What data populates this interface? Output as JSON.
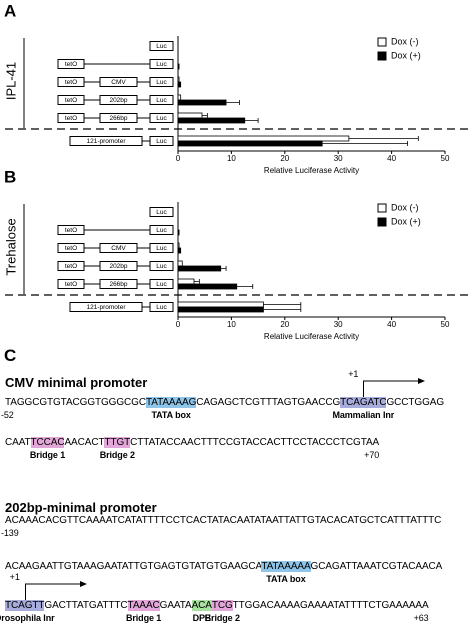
{
  "chart_data": [
    {
      "type": "bar",
      "panel": "A",
      "side_label": "IPL-41",
      "constructs": [
        [
          "Luc"
        ],
        [
          "tetO",
          "Luc"
        ],
        [
          "tetO",
          "CMV",
          "Luc"
        ],
        [
          "tetO",
          "202bp",
          "Luc"
        ],
        [
          "tetO",
          "266bp",
          "Luc"
        ],
        [
          "121-promoter",
          "Luc"
        ]
      ],
      "series": [
        {
          "name": "Dox (-)",
          "color": "#ffffff",
          "values": [
            0,
            0,
            0.2,
            0.5,
            4.5,
            32
          ],
          "errors": [
            null,
            null,
            null,
            null,
            1,
            13
          ]
        },
        {
          "name": "Dox (+)",
          "color": "#000000",
          "values": [
            0,
            0.2,
            0.5,
            9,
            12.5,
            27
          ],
          "errors": [
            null,
            null,
            null,
            2.5,
            2.5,
            16
          ]
        }
      ],
      "xlabel": "Relative Luciferase Activity",
      "xlim": [
        0,
        50
      ],
      "xticks": [
        0,
        10,
        20,
        30,
        40,
        50
      ]
    },
    {
      "type": "bar",
      "panel": "B",
      "side_label": "Trehalose",
      "constructs": [
        [
          "Luc"
        ],
        [
          "tetO",
          "Luc"
        ],
        [
          "tetO",
          "CMV",
          "Luc"
        ],
        [
          "tetO",
          "202bp",
          "Luc"
        ],
        [
          "tetO",
          "266bp",
          "Luc"
        ],
        [
          "121-promoter",
          "Luc"
        ]
      ],
      "series": [
        {
          "name": "Dox (-)",
          "color": "#ffffff",
          "values": [
            0,
            0,
            0.2,
            0.8,
            3,
            16
          ],
          "errors": [
            null,
            null,
            null,
            null,
            1,
            7
          ]
        },
        {
          "name": "Dox (+)",
          "color": "#000000",
          "values": [
            0,
            0.2,
            0.5,
            8,
            11,
            16
          ],
          "errors": [
            null,
            null,
            null,
            1,
            3,
            7
          ]
        }
      ],
      "xlabel": "Relative Luciferase Activity",
      "xlim": [
        0,
        50
      ],
      "xticks": [
        0,
        10,
        20,
        30,
        40,
        50
      ]
    }
  ],
  "panel_c": {
    "label": "C",
    "sections": [
      {
        "title": "CMV minimal promoter",
        "lines": [
          {
            "start_label": "-52",
            "segments": [
              {
                "text": "TAGGCGTGTACGGTGGGCGC"
              },
              {
                "text": "TATAAAAG",
                "highlight": "#8ec5e8",
                "label": "TATA box"
              },
              {
                "text": "CAGAGCTCGTTTAGTGAACCG"
              },
              {
                "text": "TCAGATC",
                "highlight": "#a7acdc",
                "label": "Mammalian Inr",
                "above": "+1"
              },
              {
                "text": "GCCTGGAG"
              }
            ]
          },
          {
            "end_label": "+70",
            "segments": [
              {
                "text": "CAAT"
              },
              {
                "text": "TCCAC",
                "highlight": "#e3a6d8",
                "label": "Bridge 1"
              },
              {
                "text": "AACACT"
              },
              {
                "text": "TTGT",
                "highlight": "#e3a6d8",
                "label": "Bridge 2"
              },
              {
                "text": "CTTATACCAACTTTCCGTACCACTTCCTACCCTCGTAA"
              }
            ]
          }
        ]
      },
      {
        "title": "202bp-minimal promoter",
        "lines": [
          {
            "start_label": "-139",
            "segments": [
              {
                "text": "ACAAACACGTTCAAAATCATATTTTCCTCACTATACAATATAATTATTGTACACATGCTCATTTATTTC"
              }
            ]
          },
          {
            "segments": [
              {
                "text": "ACAAGAATTGTAAAGAATATTGTGAGTGTATGTGAAGCA"
              },
              {
                "text": "TATAAAAA",
                "highlight": "#8ec5e8",
                "label": "TATA box"
              },
              {
                "text": "GCAGATTAAATCGTACAACA"
              }
            ]
          },
          {
            "end_label": "+63",
            "segments": [
              {
                "text": "TCAGTT",
                "highlight": "#a7acdc",
                "label": "Drosophila Inr",
                "above": "+1"
              },
              {
                "text": "GACTTATGATTTC"
              },
              {
                "text": "TAAAC",
                "highlight": "#e3a6d8",
                "label": "Bridge 1"
              },
              {
                "text": "GAATA"
              },
              {
                "text": "ACA",
                "highlight": "#a8e0a0",
                "label": "DPE"
              },
              {
                "text": "TCG",
                "highlight": "#e3a6d8",
                "label": "Bridge 2"
              },
              {
                "text": "TTGGACAAAAGAAAATATTTTCTGAAAAAA"
              }
            ]
          }
        ]
      }
    ]
  }
}
